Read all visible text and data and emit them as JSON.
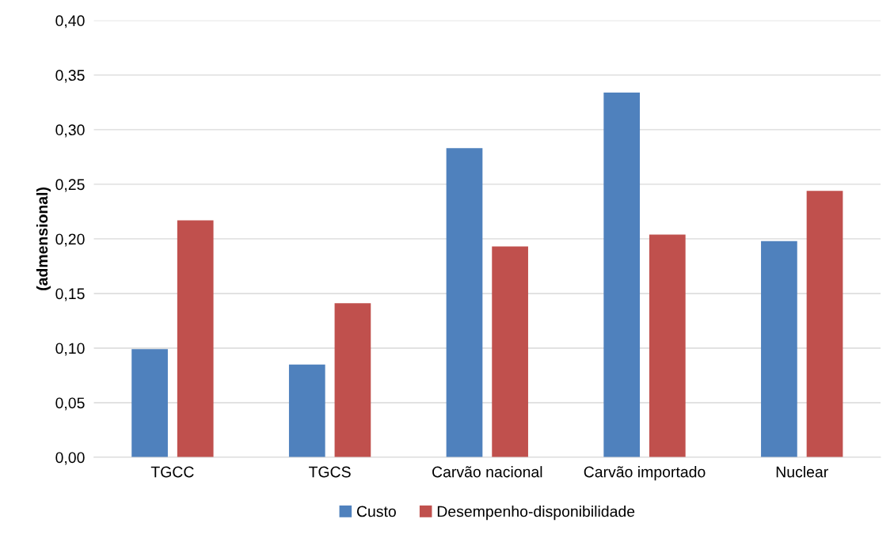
{
  "chart_data": {
    "type": "bar",
    "ylabel": "(admensional)",
    "categories": [
      "TGCC",
      "TGCS",
      "Carvão nacional",
      "Carvão importado",
      "Nuclear"
    ],
    "series": [
      {
        "name": "Custo",
        "color": "#4f81bd",
        "values": [
          0.099,
          0.085,
          0.283,
          0.334,
          0.198
        ]
      },
      {
        "name": "Desempenho-disponibilidade",
        "color": "#c0504d",
        "values": [
          0.217,
          0.141,
          0.193,
          0.204,
          0.244
        ]
      }
    ],
    "ylim": [
      0,
      0.4
    ],
    "yticks": [
      {
        "value": 0,
        "label": "0,00"
      },
      {
        "value": 0.05,
        "label": "0,05"
      },
      {
        "value": 0.1,
        "label": "0,10"
      },
      {
        "value": 0.15,
        "label": "0,15"
      },
      {
        "value": 0.2,
        "label": "0,20"
      },
      {
        "value": 0.25,
        "label": "0,25"
      },
      {
        "value": 0.3,
        "label": "0,30"
      },
      {
        "value": 0.35,
        "label": "0,35"
      },
      {
        "value": 0.4,
        "label": "0,40"
      }
    ],
    "grid": "y",
    "legend": "bottom"
  }
}
